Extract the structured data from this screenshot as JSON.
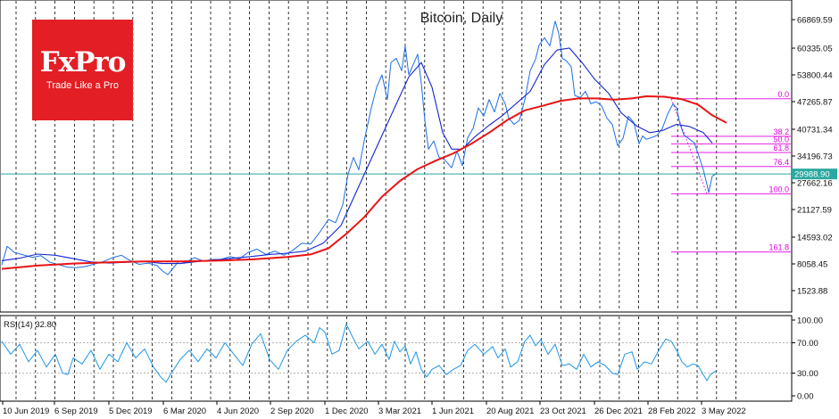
{
  "brand": {
    "name": "FxPro",
    "tagline": "Trade Like a Pro"
  },
  "chart_data": {
    "type": "line",
    "title": "Bitcoin, Daily",
    "x_ticks": [
      "10 Jun 2019",
      "6 Sep 2019",
      "5 Dec 2019",
      "6 Mar 2020",
      "4 Jun 2020",
      "2 Sep 2020",
      "1 Dec 2020",
      "3 Mar 2021",
      "1 Jun 2021",
      "20 Aug 2021",
      "23 Oct 2021",
      "26 Dec 2021",
      "28 Feb 2022",
      "3 May 2022"
    ],
    "y_ticks": [
      "66869.59",
      "60335.05",
      "53800.44",
      "47265.87",
      "40731.34",
      "34196.73",
      "27662.16",
      "21127.59",
      "14593.02",
      "8058.45",
      "1523.88"
    ],
    "ylim": [
      -1500,
      70400
    ],
    "current_price": 29988.9,
    "fib_levels": [
      {
        "label": "0.0",
        "price": 48200
      },
      {
        "label": "38.2",
        "price": 39100
      },
      {
        "label": "50.0",
        "price": 37300
      },
      {
        "label": "61.8",
        "price": 35200
      },
      {
        "label": "76.4",
        "price": 31800
      },
      {
        "label": "100.0",
        "price": 25200
      },
      {
        "label": "161.8",
        "price": 11100
      }
    ],
    "series": [
      {
        "name": "Price",
        "color": "#1e6ee6",
        "values": [
          [
            0,
            8000
          ],
          [
            6,
            12500
          ],
          [
            14,
            11000
          ],
          [
            24,
            10400
          ],
          [
            34,
            9800
          ],
          [
            44,
            10200
          ],
          [
            54,
            8600
          ],
          [
            64,
            8000
          ],
          [
            74,
            7400
          ],
          [
            84,
            7300
          ],
          [
            94,
            7600
          ],
          [
            104,
            8200
          ],
          [
            114,
            8800
          ],
          [
            124,
            9700
          ],
          [
            134,
            10300
          ],
          [
            144,
            9000
          ],
          [
            154,
            8100
          ],
          [
            164,
            8400
          ],
          [
            174,
            7800
          ],
          [
            180,
            6500
          ],
          [
            186,
            5600
          ],
          [
            192,
            7200
          ],
          [
            198,
            8800
          ],
          [
            206,
            8600
          ],
          [
            216,
            9700
          ],
          [
            226,
            8900
          ],
          [
            236,
            9300
          ],
          [
            246,
            9300
          ],
          [
            256,
            10000
          ],
          [
            266,
            9400
          ],
          [
            276,
            11000
          ],
          [
            286,
            11800
          ],
          [
            296,
            10500
          ],
          [
            306,
            11300
          ],
          [
            316,
            10300
          ],
          [
            326,
            11500
          ],
          [
            336,
            13200
          ],
          [
            346,
            13000
          ],
          [
            356,
            15800
          ],
          [
            366,
            19000
          ],
          [
            374,
            18200
          ],
          [
            382,
            22500
          ],
          [
            388,
            30000
          ],
          [
            394,
            34000
          ],
          [
            400,
            31000
          ],
          [
            406,
            38000
          ],
          [
            414,
            46000
          ],
          [
            420,
            51000
          ],
          [
            426,
            54000
          ],
          [
            432,
            48000
          ],
          [
            436,
            57000
          ],
          [
            442,
            58000
          ],
          [
            448,
            55000
          ],
          [
            452,
            61000
          ],
          [
            456,
            54000
          ],
          [
            462,
            57000
          ],
          [
            466,
            59000
          ],
          [
            470,
            52000
          ],
          [
            474,
            43000
          ],
          [
            478,
            36000
          ],
          [
            484,
            38000
          ],
          [
            490,
            34000
          ],
          [
            496,
            33500
          ],
          [
            504,
            31500
          ],
          [
            510,
            35500
          ],
          [
            516,
            32000
          ],
          [
            522,
            38800
          ],
          [
            528,
            41000
          ],
          [
            534,
            46000
          ],
          [
            540,
            44000
          ],
          [
            546,
            48000
          ],
          [
            552,
            45000
          ],
          [
            558,
            49500
          ],
          [
            564,
            47000
          ],
          [
            568,
            43500
          ],
          [
            574,
            42000
          ],
          [
            580,
            43000
          ],
          [
            586,
            48000
          ],
          [
            592,
            55000
          ],
          [
            598,
            57800
          ],
          [
            602,
            61200
          ],
          [
            608,
            63000
          ],
          [
            614,
            61000
          ],
          [
            620,
            67000
          ],
          [
            624,
            64000
          ],
          [
            628,
            58000
          ],
          [
            632,
            57500
          ],
          [
            638,
            56000
          ],
          [
            642,
            49000
          ],
          [
            648,
            48500
          ],
          [
            654,
            50000
          ],
          [
            660,
            47000
          ],
          [
            666,
            47500
          ],
          [
            672,
            46500
          ],
          [
            678,
            43500
          ],
          [
            684,
            42000
          ],
          [
            690,
            36800
          ],
          [
            696,
            38600
          ],
          [
            702,
            44000
          ],
          [
            708,
            42500
          ],
          [
            714,
            37300
          ],
          [
            718,
            39200
          ],
          [
            722,
            38400
          ],
          [
            728,
            38800
          ],
          [
            734,
            39300
          ],
          [
            740,
            41000
          ],
          [
            746,
            44500
          ],
          [
            752,
            47000
          ],
          [
            756,
            46000
          ],
          [
            760,
            42000
          ],
          [
            764,
            39500
          ],
          [
            770,
            38500
          ],
          [
            776,
            37500
          ],
          [
            780,
            35000
          ],
          [
            786,
            31000
          ],
          [
            790,
            27500
          ],
          [
            792,
            25500
          ],
          [
            796,
            29500
          ],
          [
            800,
            29988
          ]
        ]
      },
      {
        "name": "MA50",
        "color": "#1426d2",
        "values": [
          [
            0,
            9000
          ],
          [
            20,
            9600
          ],
          [
            40,
            10600
          ],
          [
            60,
            10300
          ],
          [
            80,
            9500
          ],
          [
            100,
            8700
          ],
          [
            120,
            8400
          ],
          [
            140,
            8600
          ],
          [
            160,
            8800
          ],
          [
            180,
            8300
          ],
          [
            200,
            8300
          ],
          [
            220,
            8800
          ],
          [
            240,
            9200
          ],
          [
            260,
            9600
          ],
          [
            280,
            10000
          ],
          [
            300,
            10500
          ],
          [
            320,
            10800
          ],
          [
            340,
            11300
          ],
          [
            360,
            13200
          ],
          [
            380,
            17500
          ],
          [
            400,
            27000
          ],
          [
            420,
            36500
          ],
          [
            440,
            46000
          ],
          [
            456,
            53500
          ],
          [
            470,
            57000
          ],
          [
            482,
            51000
          ],
          [
            494,
            40000
          ],
          [
            504,
            36000
          ],
          [
            516,
            36000
          ],
          [
            530,
            39000
          ],
          [
            546,
            41800
          ],
          [
            560,
            44000
          ],
          [
            576,
            47000
          ],
          [
            592,
            50000
          ],
          [
            608,
            56500
          ],
          [
            622,
            60000
          ],
          [
            636,
            60500
          ],
          [
            650,
            57000
          ],
          [
            664,
            53000
          ],
          [
            680,
            49500
          ],
          [
            694,
            44800
          ],
          [
            712,
            41500
          ],
          [
            726,
            40000
          ],
          [
            740,
            40500
          ],
          [
            756,
            42000
          ],
          [
            770,
            41500
          ],
          [
            786,
            40000
          ],
          [
            796,
            37500
          ]
        ]
      },
      {
        "name": "MA200",
        "color": "#e81414",
        "values": [
          [
            0,
            7000
          ],
          [
            40,
            7800
          ],
          [
            80,
            8300
          ],
          [
            120,
            8600
          ],
          [
            160,
            8800
          ],
          [
            200,
            8800
          ],
          [
            240,
            9000
          ],
          [
            280,
            9300
          ],
          [
            320,
            9900
          ],
          [
            346,
            10500
          ],
          [
            366,
            12000
          ],
          [
            386,
            15500
          ],
          [
            406,
            19500
          ],
          [
            426,
            24500
          ],
          [
            446,
            28300
          ],
          [
            466,
            31200
          ],
          [
            486,
            33200
          ],
          [
            506,
            35000
          ],
          [
            526,
            37300
          ],
          [
            546,
            40000
          ],
          [
            566,
            43000
          ],
          [
            586,
            45400
          ],
          [
            606,
            46500
          ],
          [
            626,
            47700
          ],
          [
            646,
            48300
          ],
          [
            666,
            48300
          ],
          [
            686,
            48000
          ],
          [
            706,
            48300
          ],
          [
            722,
            48800
          ],
          [
            742,
            48700
          ],
          [
            762,
            48100
          ],
          [
            780,
            46800
          ],
          [
            796,
            44200
          ],
          [
            812,
            42400
          ]
        ]
      }
    ],
    "rsi": {
      "label": "RSI(14) 32.80",
      "ticks": [
        "100.00",
        "70.00",
        "30.00",
        "0.00"
      ],
      "levels": [
        70,
        30
      ],
      "color": "#1e96e6",
      "values": [
        [
          0,
          72
        ],
        [
          10,
          55
        ],
        [
          20,
          68
        ],
        [
          30,
          45
        ],
        [
          40,
          60
        ],
        [
          50,
          38
        ],
        [
          60,
          55
        ],
        [
          68,
          30
        ],
        [
          74,
          28
        ],
        [
          80,
          50
        ],
        [
          90,
          42
        ],
        [
          100,
          60
        ],
        [
          110,
          35
        ],
        [
          120,
          55
        ],
        [
          130,
          45
        ],
        [
          140,
          70
        ],
        [
          150,
          50
        ],
        [
          160,
          62
        ],
        [
          170,
          38
        ],
        [
          178,
          25
        ],
        [
          184,
          18
        ],
        [
          190,
          30
        ],
        [
          200,
          48
        ],
        [
          210,
          60
        ],
        [
          220,
          45
        ],
        [
          230,
          62
        ],
        [
          240,
          50
        ],
        [
          250,
          70
        ],
        [
          260,
          55
        ],
        [
          270,
          40
        ],
        [
          280,
          68
        ],
        [
          290,
          82
        ],
        [
          300,
          48
        ],
        [
          310,
          35
        ],
        [
          320,
          60
        ],
        [
          330,
          72
        ],
        [
          340,
          80
        ],
        [
          350,
          70
        ],
        [
          356,
          90
        ],
        [
          362,
          84
        ],
        [
          370,
          55
        ],
        [
          378,
          60
        ],
        [
          386,
          95
        ],
        [
          392,
          80
        ],
        [
          400,
          62
        ],
        [
          410,
          72
        ],
        [
          418,
          55
        ],
        [
          426,
          68
        ],
        [
          434,
          48
        ],
        [
          440,
          72
        ],
        [
          446,
          58
        ],
        [
          452,
          66
        ],
        [
          458,
          42
        ],
        [
          464,
          58
        ],
        [
          470,
          35
        ],
        [
          476,
          25
        ],
        [
          482,
          35
        ],
        [
          490,
          40
        ],
        [
          498,
          28
        ],
        [
          506,
          35
        ],
        [
          514,
          40
        ],
        [
          522,
          60
        ],
        [
          530,
          68
        ],
        [
          540,
          55
        ],
        [
          550,
          65
        ],
        [
          556,
          50
        ],
        [
          564,
          62
        ],
        [
          570,
          38
        ],
        [
          578,
          45
        ],
        [
          586,
          72
        ],
        [
          592,
          80
        ],
        [
          598,
          66
        ],
        [
          604,
          74
        ],
        [
          612,
          55
        ],
        [
          620,
          68
        ],
        [
          628,
          40
        ],
        [
          636,
          42
        ],
        [
          644,
          35
        ],
        [
          652,
          55
        ],
        [
          660,
          38
        ],
        [
          668,
          45
        ],
        [
          676,
          40
        ],
        [
          684,
          30
        ],
        [
          690,
          28
        ],
        [
          698,
          55
        ],
        [
          706,
          58
        ],
        [
          712,
          35
        ],
        [
          720,
          45
        ],
        [
          728,
          42
        ],
        [
          736,
          60
        ],
        [
          744,
          75
        ],
        [
          750,
          72
        ],
        [
          756,
          60
        ],
        [
          762,
          45
        ],
        [
          768,
          38
        ],
        [
          774,
          42
        ],
        [
          780,
          40
        ],
        [
          786,
          28
        ],
        [
          790,
          20
        ],
        [
          794,
          28
        ],
        [
          800,
          32.8
        ]
      ]
    }
  }
}
